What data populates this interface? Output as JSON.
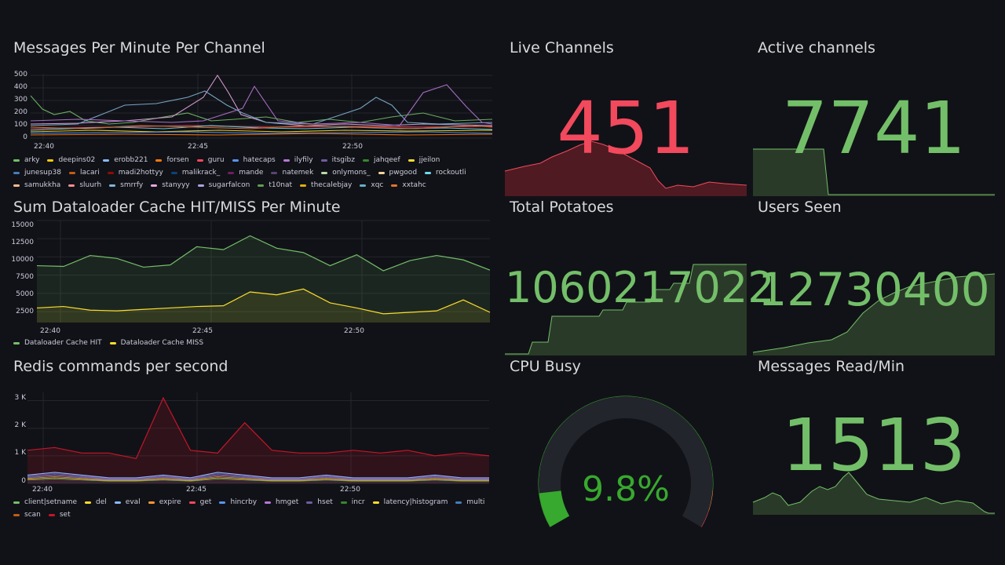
{
  "panels": {
    "messages": {
      "title": "Messages Per Minute Per Channel",
      "y_ticks": [
        "500",
        "400",
        "300",
        "200",
        "100",
        "0"
      ],
      "x_ticks": [
        "22:40",
        "22:45",
        "22:50"
      ],
      "legend": [
        {
          "name": "arky",
          "color": "#73bf69"
        },
        {
          "name": "deepins02",
          "color": "#f2cc0c"
        },
        {
          "name": "erobb221",
          "color": "#8ab8ff"
        },
        {
          "name": "forsen",
          "color": "#ff780a"
        },
        {
          "name": "guru",
          "color": "#f2495c"
        },
        {
          "name": "hatecaps",
          "color": "#5794f2"
        },
        {
          "name": "ilyfily",
          "color": "#b877d9"
        },
        {
          "name": "itsgibz",
          "color": "#705da0"
        },
        {
          "name": "jahqeef",
          "color": "#37872d"
        },
        {
          "name": "jjeilon",
          "color": "#fade2a"
        },
        {
          "name": "junesup38",
          "color": "#447ebc"
        },
        {
          "name": "lacari",
          "color": "#c15c17"
        },
        {
          "name": "madi2hottyy",
          "color": "#890f02"
        },
        {
          "name": "malikrack_",
          "color": "#0a437c"
        },
        {
          "name": "mande",
          "color": "#6d1f62"
        },
        {
          "name": "natemek",
          "color": "#584477"
        },
        {
          "name": "onlymons_",
          "color": "#b7dbab"
        },
        {
          "name": "pwgood",
          "color": "#f4d598"
        },
        {
          "name": "rockoutli",
          "color": "#70dbed"
        },
        {
          "name": "samukkha",
          "color": "#f9ba8f"
        },
        {
          "name": "sluurh",
          "color": "#f29191"
        },
        {
          "name": "smrrfy",
          "color": "#82b5d8"
        },
        {
          "name": "stanyyy",
          "color": "#e5a8e2"
        },
        {
          "name": "sugarfalcon",
          "color": "#aea2e0"
        },
        {
          "name": "t10nat",
          "color": "#629e51"
        },
        {
          "name": "thecalebjay",
          "color": "#e5ac0e"
        },
        {
          "name": "xqc",
          "color": "#64b0c8"
        },
        {
          "name": "xxtahc",
          "color": "#e0752d"
        }
      ]
    },
    "dataloader": {
      "title": "Sum Dataloader Cache HIT/MISS Per Minute",
      "y_ticks": [
        "15000",
        "12500",
        "10000",
        "7500",
        "5000",
        "2500"
      ],
      "x_ticks": [
        "22:40",
        "22:45",
        "22:50"
      ],
      "legend": [
        {
          "name": "Dataloader Cache HIT",
          "color": "#73bf69"
        },
        {
          "name": "Dataloader Cache MISS",
          "color": "#fade2a"
        }
      ]
    },
    "redis": {
      "title": "Redis commands per second",
      "y_ticks": [
        "3 K",
        "2 K",
        "1 K",
        "0"
      ],
      "x_ticks": [
        "22:40",
        "22:45",
        "22:50"
      ],
      "legend": [
        {
          "name": "client|setname",
          "color": "#73bf69"
        },
        {
          "name": "del",
          "color": "#fade2a"
        },
        {
          "name": "eval",
          "color": "#8ab8ff"
        },
        {
          "name": "expire",
          "color": "#ff9830"
        },
        {
          "name": "get",
          "color": "#f2495c"
        },
        {
          "name": "hincrby",
          "color": "#5794f2"
        },
        {
          "name": "hmget",
          "color": "#b877d9"
        },
        {
          "name": "hset",
          "color": "#705da0"
        },
        {
          "name": "incr",
          "color": "#37872d"
        },
        {
          "name": "latency|histogram",
          "color": "#fade2a"
        },
        {
          "name": "multi",
          "color": "#447ebc"
        },
        {
          "name": "scan",
          "color": "#c15c17"
        },
        {
          "name": "set",
          "color": "#c4162a"
        }
      ]
    },
    "live_channels": {
      "title": "Live Channels",
      "value": "451",
      "color": "#f2495c"
    },
    "active_channels": {
      "title": "Active channels",
      "value": "7741",
      "color": "#73bf69"
    },
    "total_potatoes": {
      "title": "Total Potatoes",
      "value": "1060217022",
      "color": "#73bf69"
    },
    "users_seen": {
      "title": "Users Seen",
      "value": "12730400",
      "color": "#73bf69"
    },
    "cpu_busy": {
      "title": "CPU Busy",
      "value": "9.8%",
      "percent": 9.8,
      "color": "#37a92e"
    },
    "messages_read": {
      "title": "Messages Read/Min",
      "value": "1513",
      "color": "#73bf69"
    }
  },
  "chart_data": [
    {
      "type": "line",
      "title": "Sum Dataloader Cache HIT/MISS Per Minute",
      "x": [
        "22:38",
        "22:39",
        "22:40",
        "22:41",
        "22:42",
        "22:43",
        "22:44",
        "22:45",
        "22:46",
        "22:47",
        "22:48",
        "22:49",
        "22:50",
        "22:51",
        "22:52",
        "22:53",
        "22:54",
        "22:55"
      ],
      "series": [
        {
          "name": "Dataloader Cache HIT",
          "values": [
            8800,
            8700,
            10200,
            9800,
            8600,
            8900,
            11400,
            11000,
            12900,
            11200,
            10600,
            8800,
            10300,
            8100,
            9500,
            10200,
            9600,
            8200
          ]
        },
        {
          "name": "Dataloader Cache MISS",
          "values": [
            3000,
            3200,
            2700,
            2600,
            2800,
            3000,
            3200,
            3300,
            5200,
            4800,
            5600,
            3700,
            3000,
            2200,
            2400,
            2600,
            4100,
            2400
          ]
        }
      ],
      "ylim": [
        1000,
        15000
      ]
    },
    {
      "type": "area",
      "title": "Redis commands per second",
      "x": [
        "22:38",
        "22:39",
        "22:40",
        "22:41",
        "22:42",
        "22:43",
        "22:44",
        "22:45",
        "22:46",
        "22:47",
        "22:48",
        "22:49",
        "22:50",
        "22:51",
        "22:52",
        "22:53",
        "22:54",
        "22:55"
      ],
      "series": [
        {
          "name": "set",
          "values": [
            1200,
            1300,
            1100,
            1100,
            900,
            3100,
            1200,
            1100,
            2200,
            1200,
            1100,
            1100,
            1200,
            1100,
            1200,
            1000,
            1100,
            1000
          ]
        },
        {
          "name": "get",
          "values": [
            300,
            400,
            300,
            200,
            200,
            300,
            200,
            400,
            300,
            200,
            200,
            300,
            200,
            200,
            200,
            300,
            200,
            200
          ]
        }
      ],
      "ylim": [
        0,
        3300
      ]
    },
    {
      "type": "gauge",
      "title": "CPU Busy",
      "values": [
        9.8
      ],
      "ylim": [
        0,
        100
      ]
    }
  ]
}
